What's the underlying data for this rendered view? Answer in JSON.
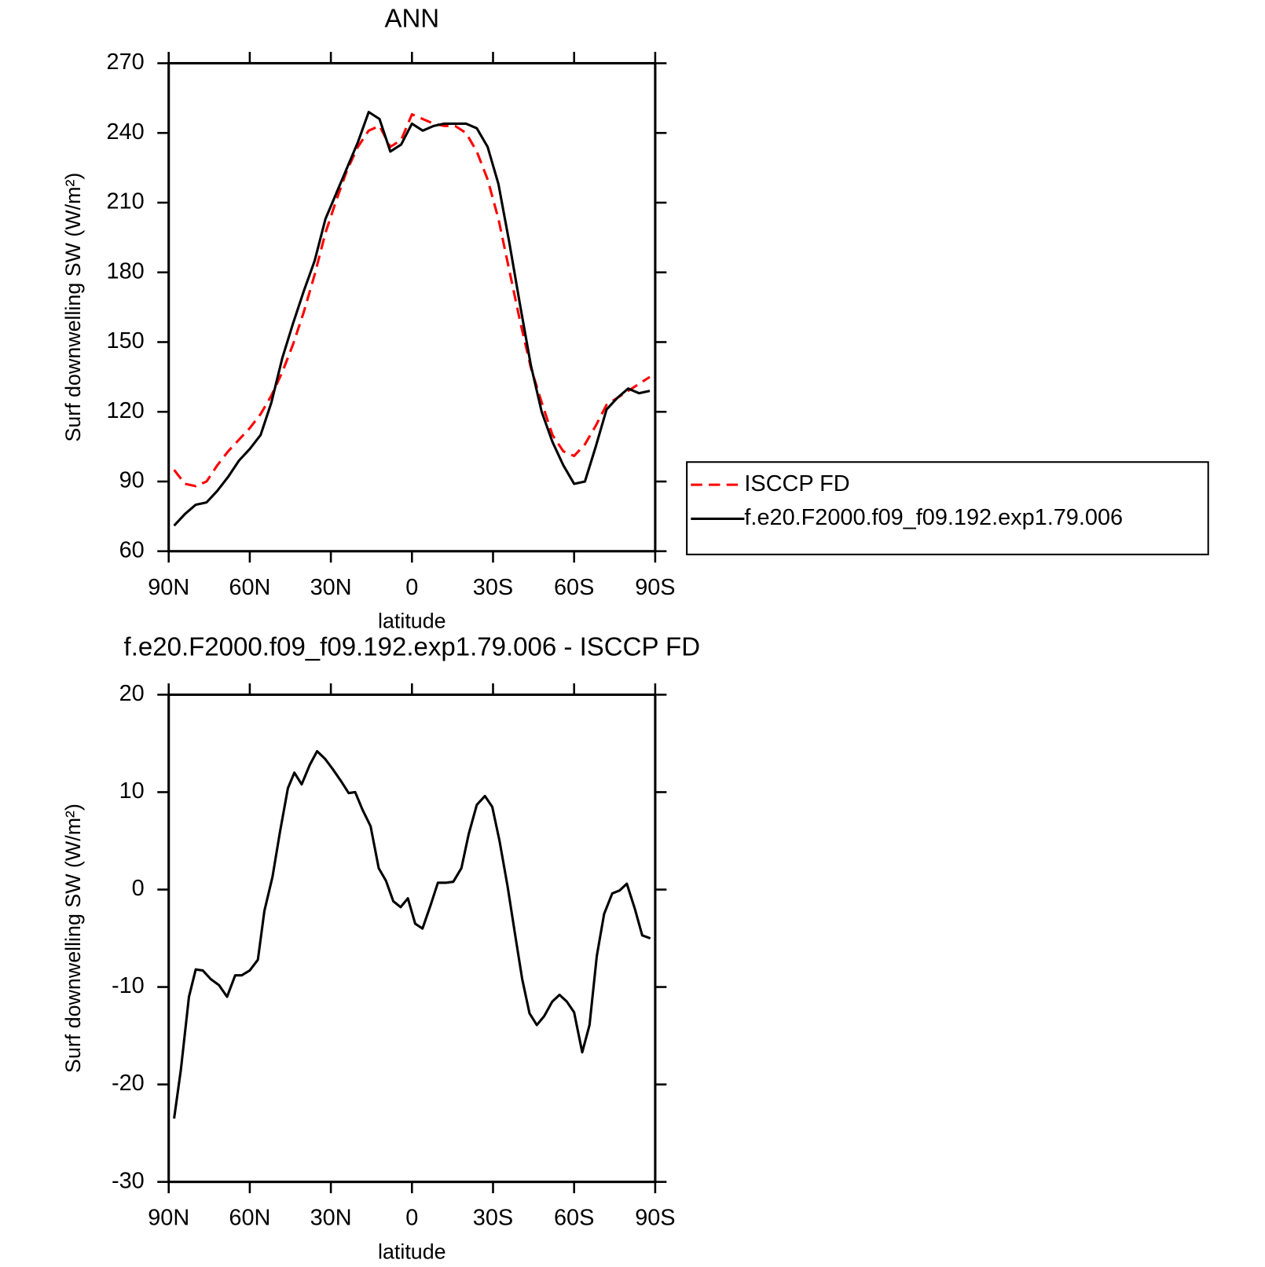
{
  "chart_data": [
    {
      "type": "line",
      "title": "ANN",
      "xlabel": "latitude",
      "ylabel": "Surf downwelling SW (W/m²)",
      "x": [
        88,
        84,
        80,
        76,
        72,
        68,
        64,
        60,
        56,
        52,
        48,
        44,
        40,
        36,
        32,
        28,
        24,
        20,
        16,
        12,
        8,
        4,
        0,
        -4,
        -8,
        -12,
        -16,
        -20,
        -24,
        -28,
        -32,
        -36,
        -40,
        -44,
        -48,
        -52,
        -56,
        -60,
        -64,
        -68,
        -72,
        -76,
        -80,
        -84,
        -88
      ],
      "series": [
        {
          "name": "ISCCP FD",
          "color": "#ff0000",
          "dashed": true,
          "values": [
            95,
            89,
            88,
            90,
            97,
            103,
            108,
            113,
            119,
            127,
            137,
            149,
            163,
            179,
            197,
            211,
            224,
            234,
            241,
            243,
            234,
            237,
            248,
            246,
            244,
            243,
            243,
            240,
            232,
            220,
            203,
            181,
            159,
            139,
            124,
            110,
            103,
            101,
            106,
            114,
            123,
            126,
            129,
            132,
            135
          ]
        },
        {
          "name": "f.e20.F2000.f09_f09.192.exp1.79.006",
          "color": "#000000",
          "dashed": false,
          "values": [
            71,
            76,
            80,
            81,
            86,
            92,
            99,
            104,
            110,
            124,
            143,
            158,
            172,
            185,
            203,
            214,
            225,
            236,
            249,
            246,
            232,
            235,
            244,
            241,
            243,
            244,
            244,
            244,
            242,
            234,
            218,
            193,
            166,
            140,
            120,
            107,
            97,
            89,
            90,
            105,
            121,
            126,
            130,
            128,
            129
          ]
        }
      ],
      "xlim": [
        90,
        -90
      ],
      "xticks": [
        {
          "value": 90,
          "label": "90N"
        },
        {
          "value": 60,
          "label": "60N"
        },
        {
          "value": 30,
          "label": "30N"
        },
        0,
        {
          "value": -30,
          "label": "30S"
        },
        {
          "value": -60,
          "label": "60S"
        },
        {
          "value": -90,
          "label": "90S"
        }
      ],
      "ylim": [
        60,
        270
      ],
      "yticks": [
        60,
        90,
        120,
        150,
        180,
        210,
        240,
        270
      ],
      "legend": "right"
    },
    {
      "type": "line",
      "title": "f.e20.F2000.f09_f09.192.exp1.79.006 - ISCCP FD",
      "xlabel": "latitude",
      "ylabel": "Surf downwelling SW (W/m²)",
      "x": [
        88,
        85.5,
        82.5,
        80,
        77.4,
        74.4,
        71.4,
        68.4,
        65.4,
        63,
        60,
        57,
        54.6,
        51.6,
        48.9,
        45.9,
        43.5,
        40.8,
        37.8,
        35.1,
        32.1,
        29.4,
        26.4,
        23.4,
        21,
        18.3,
        15.3,
        12.3,
        9.6,
        6.9,
        4.2,
        1.5,
        -1.2,
        -3.9,
        -6.9,
        -9.6,
        -12.6,
        -15.3,
        -18.3,
        -21,
        -24,
        -27,
        -29.7,
        -32.4,
        -35.4,
        -38.1,
        -40.8,
        -43.5,
        -46.2,
        -48.9,
        -51.9,
        -54.6,
        -57.3,
        -60,
        -63,
        -65.7,
        -68.4,
        -71.1,
        -74.1,
        -76.8,
        -79.5,
        -82.5,
        -85.2,
        -88.2
      ],
      "color": "#000000",
      "values": [
        -23.5,
        -18.5,
        -11,
        -8.2,
        -8.3,
        -9.2,
        -9.8,
        -11,
        -8.8,
        -8.8,
        -8.3,
        -7.2,
        -2.2,
        1.3,
        5.8,
        10.4,
        12,
        10.8,
        12.8,
        14.2,
        13.4,
        12.4,
        11.2,
        9.9,
        10,
        8.2,
        6.5,
        2.2,
        0.9,
        -1.2,
        -1.8,
        -0.9,
        -3.5,
        -4,
        -1.6,
        0.7,
        0.7,
        0.8,
        2.2,
        5.7,
        8.7,
        9.6,
        8.5,
        5,
        0.3,
        -4.5,
        -9.2,
        -12.7,
        -13.9,
        -13,
        -11.5,
        -10.8,
        -11.5,
        -12.6,
        -16.7,
        -13.9,
        -6.8,
        -2.5,
        -0.4,
        -0.1,
        0.6,
        -2,
        -4.7,
        -5
      ],
      "xlim": [
        90,
        -90
      ],
      "xticks": [
        {
          "value": 90,
          "label": "90N"
        },
        {
          "value": 60,
          "label": "60N"
        },
        {
          "value": 30,
          "label": "30N"
        },
        0,
        {
          "value": -30,
          "label": "30S"
        },
        {
          "value": -60,
          "label": "60S"
        },
        {
          "value": -90,
          "label": "90S"
        }
      ],
      "ylim": [
        -30,
        20
      ],
      "yticks": [
        -30,
        -20,
        -10,
        0,
        10,
        20
      ]
    }
  ]
}
